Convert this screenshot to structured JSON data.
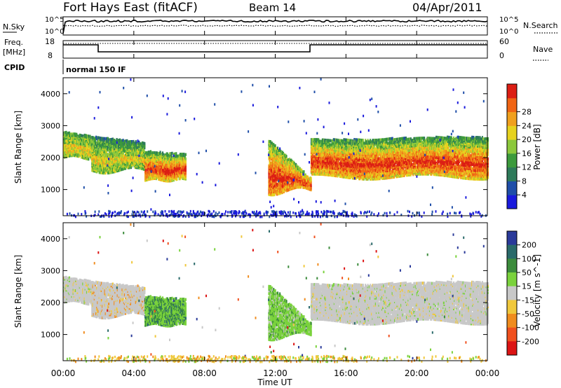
{
  "header": {
    "title": "Fort Hays East (fitACF)",
    "beam": "Beam 14",
    "date": "04/Apr/2011"
  },
  "noise_panel": {
    "left_label": "N.Sky",
    "right_label": "N.Search",
    "ytick_top": "10^5",
    "ytick_bottom": "10^0"
  },
  "freq_panel": {
    "left_label_1": "Freq.",
    "left_label_2": "[MHz]",
    "right_label": "Nave",
    "left_ticks": [
      "18",
      "8"
    ],
    "right_ticks": [
      "60",
      "0"
    ]
  },
  "cpid": {
    "label": "CPID",
    "value": "normal 150 IF"
  },
  "chart_data": [
    {
      "type": "heatmap",
      "name": "power",
      "ylabel": "Slant Range [km]",
      "yticks": [
        "1000",
        "2000",
        "3000",
        "4000"
      ],
      "xlim_hours": [
        0,
        24
      ],
      "ylim_km": [
        180,
        4500
      ],
      "colorbar": {
        "label": "Power [dB]",
        "ticks": [
          "4",
          "8",
          "12",
          "16",
          "20",
          "24",
          "28"
        ],
        "colors": [
          "#1a1adc",
          "#1f4ea8",
          "#2e7a5a",
          "#3c9a3c",
          "#8cc83c",
          "#e6d21e",
          "#f0a01e",
          "#f06414",
          "#dc1e14"
        ]
      },
      "patches": [
        {
          "t": [
            0.0,
            1.5
          ],
          "range_km": [
            2000,
            2900
          ],
          "level": "moderate"
        },
        {
          "t": [
            1.5,
            4.5
          ],
          "range_km": [
            1600,
            2700
          ],
          "level": "moderate"
        },
        {
          "t": [
            4.5,
            7.0
          ],
          "range_km": [
            1300,
            2300
          ],
          "level": "high"
        },
        {
          "t": [
            11.5,
            14.0
          ],
          "range_km": [
            900,
            2600
          ],
          "level": "high"
        },
        {
          "t": [
            14.0,
            24.0
          ],
          "range_km": [
            1400,
            2800
          ],
          "level": "high"
        }
      ]
    },
    {
      "type": "heatmap",
      "name": "velocity",
      "ylabel": "Slant Range [km]",
      "yticks": [
        "1000",
        "2000",
        "3000",
        "4000"
      ],
      "colorbar": {
        "label": "Velocity [m s^-1]",
        "ticks": [
          "200",
          "100",
          "50",
          "15",
          "-15",
          "-50",
          "-100",
          "-200"
        ],
        "colors": [
          "#2a3a9a",
          "#2a6a6a",
          "#3c8c3c",
          "#7ad23c",
          "#c8c8c8",
          "#f0c83c",
          "#f08c1e",
          "#f0501e",
          "#dc1414"
        ]
      },
      "patches": [
        {
          "t": [
            0.0,
            5.0
          ],
          "range_km": [
            1600,
            2900
          ],
          "velocity": "near zero"
        },
        {
          "t": [
            4.5,
            7.0
          ],
          "range_km": [
            1300,
            2300
          ],
          "velocity": "15 to 100"
        },
        {
          "t": [
            11.5,
            14.0
          ],
          "range_km": [
            900,
            2600
          ],
          "velocity": "15 to 50"
        },
        {
          "t": [
            14.0,
            24.0
          ],
          "range_km": [
            1400,
            2800
          ],
          "velocity": "near zero"
        }
      ]
    }
  ],
  "xaxis": {
    "label": "Time UT",
    "ticks": [
      "00:00",
      "04:00",
      "08:00",
      "12:00",
      "16:00",
      "20:00",
      "00:00"
    ]
  }
}
